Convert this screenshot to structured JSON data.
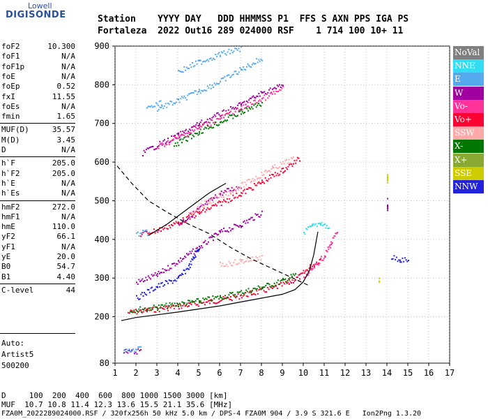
{
  "logo": {
    "top": "Lowell",
    "main": "DIGISONDE"
  },
  "header": {
    "line1": "Station    YYYY DAY   DDD HHMMSS P1  FFS S AXN PPS IGA PS",
    "line2": "Fortaleza  2022 Out16 289 024000 RSF    1 714 100 10+ 11"
  },
  "params_group1": [
    {
      "k": "foF2",
      "v": "10.300"
    },
    {
      "k": "foF1",
      "v": "N/A"
    },
    {
      "k": "foF1p",
      "v": "N/A"
    },
    {
      "k": "foE",
      "v": "N/A"
    },
    {
      "k": "foEp",
      "v": "0.52"
    },
    {
      "k": "fxI",
      "v": "11.55"
    },
    {
      "k": "foEs",
      "v": "N/A"
    },
    {
      "k": "fmin",
      "v": "1.65"
    }
  ],
  "params_group2": [
    {
      "k": "MUF(D)",
      "v": "35.57"
    },
    {
      "k": "M(D)",
      "v": "3.45"
    },
    {
      "k": "D",
      "v": "N/A"
    }
  ],
  "params_group3": [
    {
      "k": "h`F",
      "v": "205.0"
    },
    {
      "k": "h`F2",
      "v": "205.0"
    },
    {
      "k": "h`E",
      "v": "N/A"
    },
    {
      "k": "h`Es",
      "v": "N/A"
    }
  ],
  "params_group4": [
    {
      "k": "hmF2",
      "v": "272.0"
    },
    {
      "k": "hmF1",
      "v": "N/A"
    },
    {
      "k": "hmE",
      "v": "110.0"
    },
    {
      "k": "yF2",
      "v": "66.1"
    },
    {
      "k": "yF1",
      "v": "N/A"
    },
    {
      "k": "yE",
      "v": "20.0"
    },
    {
      "k": "B0",
      "v": "54.7"
    },
    {
      "k": "B1",
      "v": "4.40"
    }
  ],
  "params_group5": [
    {
      "k": "C-level",
      "v": "44"
    }
  ],
  "auto": {
    "line1": "Auto:",
    "line2": "Artist5",
    "line3": "500200"
  },
  "legend": [
    {
      "label": "NoVal",
      "color": "#808080"
    },
    {
      "label": "NNE",
      "color": "#33ddf2"
    },
    {
      "label": "E",
      "color": "#55aaee"
    },
    {
      "label": "W",
      "color": "#a000a0"
    },
    {
      "label": "Vo-",
      "color": "#ff3399"
    },
    {
      "label": "Vo+",
      "color": "#ff0033"
    },
    {
      "label": "SSW",
      "color": "#ffaaaa"
    },
    {
      "label": "X-",
      "color": "#007700"
    },
    {
      "label": "X+",
      "color": "#88aa33"
    },
    {
      "label": "SSE",
      "color": "#cccc00"
    },
    {
      "label": "NNW",
      "color": "#2222dd"
    }
  ],
  "bottom": {
    "line1": "D     100  200  400  600  800 1000 1500 3000 [km]",
    "line2": "MUF  10.7 10.8 11.4 12.3 13.6 15.5 21.1 35.6 [MHz]",
    "line3": "FZA0M_2022289024000.RSF / 320fx256h 50 kHz 5.0 km / DPS-4 FZA0M 904 / 3.9 S 321.6 E   Ion2Png 1.3.20"
  },
  "chart_data": {
    "type": "scatter",
    "title": "",
    "xlabel": "",
    "ylabel": "",
    "xlim": [
      1,
      17
    ],
    "ylim": [
      80,
      900
    ],
    "xticks": [
      1,
      2,
      3,
      4,
      5,
      6,
      7,
      8,
      9,
      10,
      11,
      12,
      13,
      14,
      15,
      16,
      17
    ],
    "yticks": [
      80,
      200,
      300,
      400,
      500,
      600,
      700,
      800,
      900
    ],
    "grid": true,
    "series": [
      {
        "color": "#ff0033",
        "segments": [
          [
            [
              1.6,
              212
            ],
            [
              2.5,
              218
            ],
            [
              3.5,
              225
            ],
            [
              4.5,
              232
            ],
            [
              5.5,
              240
            ],
            [
              6.5,
              250
            ],
            [
              7.5,
              262
            ],
            [
              8.5,
              275
            ],
            [
              9.3,
              290
            ],
            [
              9.8,
              305
            ],
            [
              10.3,
              330
            ],
            [
              10.8,
              350
            ]
          ]
        ]
      },
      {
        "color": "#007700",
        "segments": [
          [
            [
              1.7,
              218
            ],
            [
              3,
              226
            ],
            [
              4,
              234
            ],
            [
              5,
              242
            ],
            [
              6,
              252
            ],
            [
              7,
              264
            ],
            [
              8,
              278
            ],
            [
              9,
              294
            ],
            [
              9.6,
              310
            ]
          ]
        ]
      },
      {
        "color": "#ff3399",
        "segments": [
          [
            [
              10,
              300
            ],
            [
              10.5,
              330
            ],
            [
              11,
              360
            ],
            [
              11.3,
              390
            ],
            [
              11.6,
              420
            ]
          ]
        ]
      },
      {
        "color": "#33ddf2",
        "segments": [
          [
            [
              10,
              420
            ],
            [
              10.4,
              435
            ],
            [
              10.8,
              445
            ],
            [
              11.2,
              430
            ]
          ]
        ]
      },
      {
        "color": "#a000a0",
        "segments": [
          [
            [
              2,
              290
            ],
            [
              3,
              310
            ],
            [
              4,
              345
            ],
            [
              5,
              380
            ],
            [
              6,
              420
            ],
            [
              7,
              440
            ],
            [
              8,
              470
            ]
          ],
          [
            [
              4,
              440
            ],
            [
              5,
              480
            ],
            [
              6,
              520
            ],
            [
              7,
              540
            ]
          ],
          [
            [
              14,
              480
            ],
            [
              14,
              500
            ]
          ]
        ]
      },
      {
        "color": "#2222dd",
        "segments": [
          [
            [
              2,
              250
            ],
            [
              3,
              280
            ],
            [
              4,
              300
            ],
            [
              4.5,
              330
            ],
            [
              5,
              380
            ]
          ],
          [
            [
              14.2,
              355
            ],
            [
              14.6,
              350
            ],
            [
              15,
              345
            ]
          ]
        ]
      },
      {
        "color": "#ff0033",
        "segments": [
          [
            [
              2.2,
              415
            ],
            [
              3,
              425
            ],
            [
              4,
              445
            ],
            [
              5,
              470
            ],
            [
              6,
              495
            ],
            [
              7,
              520
            ],
            [
              8,
              550
            ],
            [
              9,
              580
            ],
            [
              9.8,
              610
            ]
          ]
        ]
      },
      {
        "color": "#ffaaaa",
        "segments": [
          [
            [
              4.5,
              470
            ],
            [
              5.5,
              500
            ],
            [
              6.5,
              525
            ],
            [
              7.5,
              555
            ],
            [
              8.5,
              585
            ],
            [
              9.5,
              610
            ]
          ],
          [
            [
              6,
              335
            ],
            [
              7,
              345
            ],
            [
              8,
              355
            ]
          ]
        ]
      },
      {
        "color": "#55aaee",
        "segments": [
          [
            [
              3,
              740
            ],
            [
              4,
              760
            ],
            [
              5,
              785
            ],
            [
              6,
              810
            ],
            [
              7,
              840
            ],
            [
              8,
              870
            ]
          ],
          [
            [
              4,
              835
            ],
            [
              5,
              860
            ],
            [
              6,
              880
            ],
            [
              7,
              895
            ]
          ],
          [
            [
              2,
              415
            ],
            [
              2.6,
              420
            ]
          ],
          [
            [
              2.5,
              740
            ],
            [
              3.2,
              755
            ]
          ]
        ]
      },
      {
        "color": "#a000a0",
        "segments": [
          [
            [
              2.3,
              625
            ],
            [
              3,
              645
            ],
            [
              4,
              670
            ],
            [
              5,
              700
            ],
            [
              6,
              725
            ],
            [
              7,
              750
            ],
            [
              8,
              780
            ],
            [
              9,
              800
            ]
          ]
        ]
      },
      {
        "color": "#ff3399",
        "segments": [
          [
            [
              3,
              640
            ],
            [
              4,
              665
            ],
            [
              5,
              690
            ],
            [
              6,
              715
            ],
            [
              7,
              740
            ],
            [
              8,
              765
            ],
            [
              9,
              790
            ]
          ]
        ]
      },
      {
        "color": "#007700",
        "segments": [
          [
            [
              3.8,
              645
            ],
            [
              5,
              680
            ],
            [
              6,
              705
            ],
            [
              7,
              730
            ],
            [
              8,
              755
            ]
          ]
        ]
      },
      {
        "color": "#cccc00",
        "segments": [
          [
            [
              13.6,
              295
            ],
            [
              13.6,
              300
            ]
          ],
          [
            [
              14,
              550
            ],
            [
              14,
              565
            ]
          ]
        ]
      },
      {
        "color": "#a000a0",
        "segments": [
          [
            [
              1.4,
              110
            ],
            [
              2.2,
              112
            ]
          ]
        ]
      },
      {
        "color": "#55aaee",
        "segments": [
          [
            [
              1.4,
              115
            ],
            [
              2.2,
              118
            ]
          ]
        ]
      }
    ],
    "curves": [
      {
        "style": "solid",
        "points": [
          [
            1.3,
            190
          ],
          [
            2,
            198
          ],
          [
            3,
            205
          ],
          [
            4,
            212
          ],
          [
            5,
            220
          ],
          [
            6,
            228
          ],
          [
            7,
            238
          ],
          [
            8,
            248
          ],
          [
            9,
            258
          ],
          [
            9.6,
            270
          ],
          [
            10,
            290
          ],
          [
            10.3,
            320
          ],
          [
            10.5,
            360
          ],
          [
            10.6,
            390
          ],
          [
            10.7,
            420
          ]
        ]
      },
      {
        "style": "dashed",
        "points": [
          [
            1.1,
            590
          ],
          [
            1.8,
            545
          ],
          [
            2.6,
            500
          ],
          [
            3.5,
            470
          ],
          [
            4.5,
            440
          ],
          [
            5.5,
            415
          ],
          [
            6.5,
            380
          ],
          [
            7.5,
            350
          ],
          [
            8.5,
            325
          ],
          [
            9.5,
            300
          ],
          [
            10.3,
            280
          ]
        ]
      },
      {
        "style": "solid",
        "points": [
          [
            2.6,
            410
          ],
          [
            3.5,
            440
          ],
          [
            4.5,
            480
          ],
          [
            5.5,
            520
          ],
          [
            6.3,
            545
          ]
        ]
      }
    ]
  }
}
